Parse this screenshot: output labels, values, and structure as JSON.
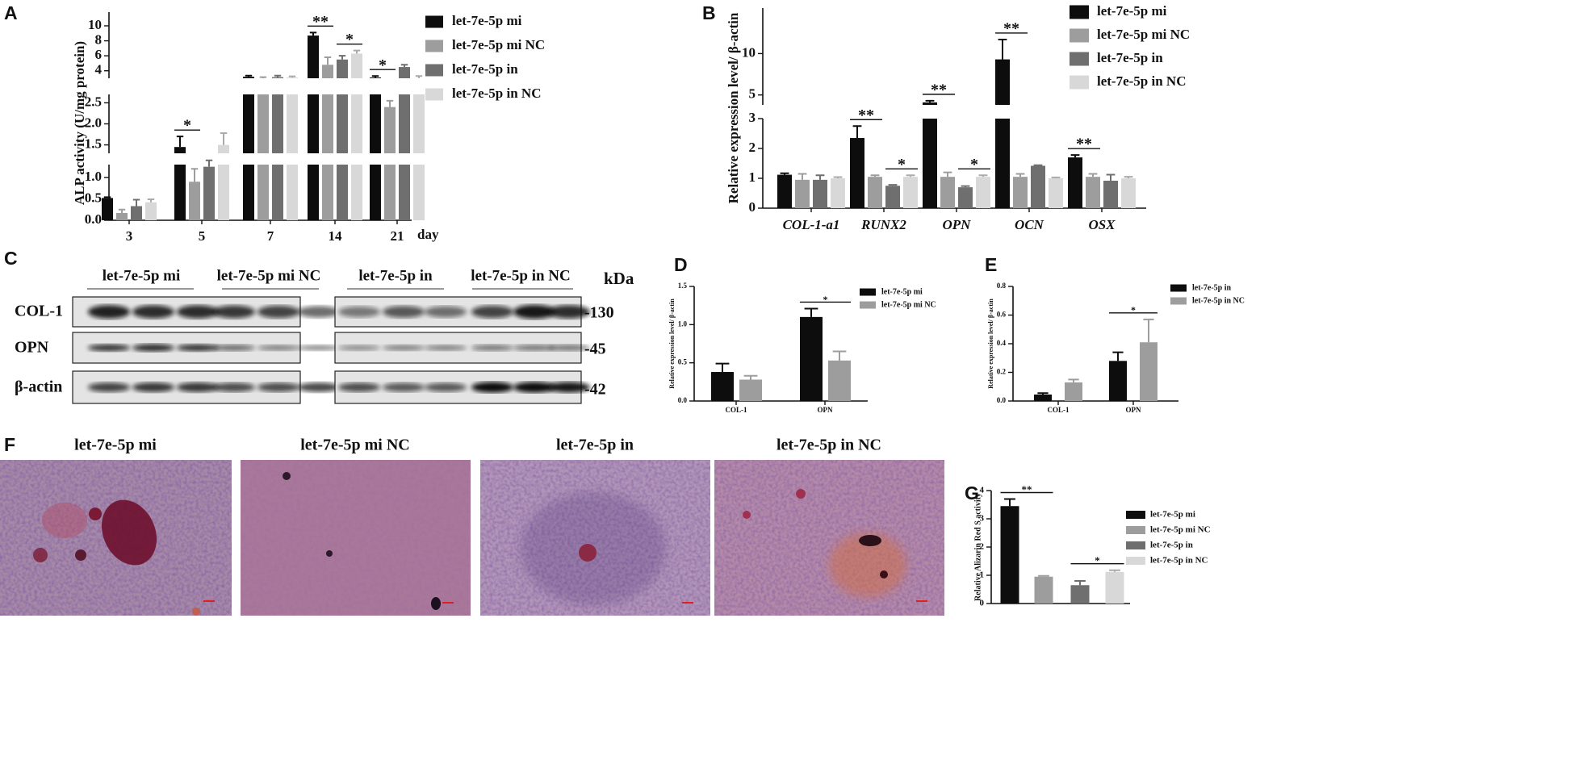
{
  "chart_data": [
    {
      "type": "bar",
      "panel": "A",
      "y_label": "ALP activity (U/mg protein)",
      "x_label": "day",
      "categories": [
        "3",
        "5",
        "7",
        "14",
        "21"
      ],
      "series": [
        {
          "name": "let-7e-5p mi",
          "color": "#0d0d0d",
          "values": [
            0.52,
            1.45,
            3.2,
            8.7,
            3.1
          ],
          "errors": [
            0.02,
            0.25,
            0.15,
            0.4,
            0.2
          ]
        },
        {
          "name": "let-7e-5p mi NC",
          "color": "#9d9d9d",
          "values": [
            0.17,
            0.9,
            3.0,
            4.8,
            2.4
          ],
          "errors": [
            0.08,
            0.3,
            0.15,
            1.0,
            0.15
          ]
        },
        {
          "name": "let-7e-5p in",
          "color": "#6f6f6f",
          "values": [
            0.33,
            1.25,
            3.15,
            5.5,
            4.5
          ],
          "errors": [
            0.15,
            0.15,
            0.2,
            0.5,
            0.3
          ]
        },
        {
          "name": "let-7e-5p in NC",
          "color": "#d8d8d8",
          "values": [
            0.42,
            1.5,
            3.1,
            6.3,
            3.0
          ],
          "errors": [
            0.07,
            0.28,
            0.15,
            0.4,
            0.3
          ]
        }
      ],
      "y_segments": [
        {
          "ylim": [
            0,
            1.3
          ],
          "yticks": [
            {
              "value": 0,
              "label": "0.0"
            },
            {
              "value": 0.5,
              "label": "0.5"
            },
            {
              "value": 1,
              "label": "1.0"
            }
          ]
        },
        {
          "ylim": [
            1.3,
            2.7
          ],
          "yticks": [
            1.5,
            {
              "value": 2,
              "label": "2.0"
            },
            2.5
          ]
        },
        {
          "ylim": [
            3,
            10
          ],
          "yticks": [
            4,
            6,
            8,
            10
          ]
        }
      ],
      "annotations": [
        {
          "label": "*",
          "category": "5",
          "between": [
            "let-7e-5p mi",
            "let-7e-5p mi NC"
          ]
        },
        {
          "label": "**",
          "category": "14",
          "between": [
            "let-7e-5p mi",
            "let-7e-5p mi NC"
          ]
        },
        {
          "label": "*",
          "category": "14",
          "between": [
            "let-7e-5p in",
            "let-7e-5p in NC"
          ]
        },
        {
          "label": "*",
          "category": "21",
          "between": [
            "let-7e-5p mi",
            "let-7e-5p mi NC"
          ]
        }
      ]
    },
    {
      "type": "bar",
      "panel": "B",
      "y_label": "Relative expression level/ β-actin",
      "categories": [
        "COL-1-a1",
        "RUNX2",
        "OPN",
        "OCN",
        "OSX"
      ],
      "series": [
        {
          "name": "let-7e-5p mi",
          "color": "#0d0d0d",
          "values": [
            1.12,
            2.35,
            4.1,
            9.3,
            1.7
          ],
          "errors": [
            0.05,
            0.4,
            0.2,
            2.4,
            0.08
          ]
        },
        {
          "name": "let-7e-5p mi NC",
          "color": "#9d9d9d",
          "values": [
            0.95,
            1.05,
            1.05,
            1.05,
            1.05
          ],
          "errors": [
            0.2,
            0.05,
            0.15,
            0.1,
            0.1
          ]
        },
        {
          "name": "let-7e-5p in",
          "color": "#6f6f6f",
          "values": [
            0.95,
            0.75,
            0.7,
            1.42,
            0.92
          ],
          "errors": [
            0.15,
            0.03,
            0.04,
            0.02,
            0.2
          ]
        },
        {
          "name": "let-7e-5p in NC",
          "color": "#d8d8d8",
          "values": [
            1.0,
            1.05,
            1.05,
            1.0,
            1.0
          ],
          "errors": [
            0.04,
            0.05,
            0.05,
            0.03,
            0.05
          ]
        }
      ],
      "y_segments": [
        {
          "ylim": [
            0,
            3
          ],
          "yticks": [
            0,
            1,
            2,
            3
          ]
        },
        {
          "ylim": [
            3.8,
            15.5
          ],
          "yticks": [
            5,
            10
          ]
        }
      ],
      "annotations": [
        {
          "label": "**",
          "category": "RUNX2",
          "between": [
            "let-7e-5p mi",
            "let-7e-5p mi NC"
          ]
        },
        {
          "label": "*",
          "category": "RUNX2",
          "between": [
            "let-7e-5p in",
            "let-7e-5p in NC"
          ]
        },
        {
          "label": "**",
          "category": "OPN",
          "between": [
            "let-7e-5p mi",
            "let-7e-5p mi NC"
          ]
        },
        {
          "label": "*",
          "category": "OPN",
          "between": [
            "let-7e-5p in",
            "let-7e-5p in NC"
          ]
        },
        {
          "label": "**",
          "category": "OCN",
          "between": [
            "let-7e-5p mi",
            "let-7e-5p mi NC"
          ]
        },
        {
          "label": "**",
          "category": "OSX",
          "between": [
            "let-7e-5p mi",
            "let-7e-5p mi NC"
          ]
        }
      ]
    },
    {
      "type": "bar",
      "panel": "D",
      "y_label": "Relative expression level/ β-actin",
      "categories": [
        "COL-1",
        "OPN"
      ],
      "series": [
        {
          "name": "let-7e-5p mi",
          "color": "#0d0d0d",
          "values": [
            0.38,
            1.1
          ],
          "errors": [
            0.11,
            0.11
          ]
        },
        {
          "name": "let-7e-5p mi NC",
          "color": "#9d9d9d",
          "values": [
            0.28,
            0.53
          ],
          "errors": [
            0.05,
            0.12
          ]
        }
      ],
      "ylim": [
        0,
        1.5
      ],
      "yticks": [
        {
          "value": 0,
          "label": "0.0"
        },
        {
          "value": 0.5,
          "label": "0.5"
        },
        {
          "value": 1,
          "label": "1.0"
        },
        {
          "value": 1.5,
          "label": "1.5"
        }
      ],
      "annotations": [
        {
          "label": "*",
          "category": "OPN",
          "between": [
            "let-7e-5p mi",
            "let-7e-5p mi NC"
          ]
        }
      ]
    },
    {
      "type": "bar",
      "panel": "E",
      "y_label": "Relative expression level/ β-actin",
      "categories": [
        "COL-1",
        "OPN"
      ],
      "series": [
        {
          "name": "let-7e-5p in",
          "color": "#0d0d0d",
          "values": [
            0.045,
            0.28
          ],
          "errors": [
            0.01,
            0.06
          ]
        },
        {
          "name": "let-7e-5p in NC",
          "color": "#9d9d9d",
          "values": [
            0.13,
            0.41
          ],
          "errors": [
            0.02,
            0.16
          ]
        }
      ],
      "ylim": [
        0,
        0.8
      ],
      "yticks": [
        {
          "value": 0,
          "label": "0.0"
        },
        0.2,
        0.4,
        0.6,
        0.8
      ],
      "annotations": [
        {
          "label": "*",
          "category": "OPN",
          "between": [
            "let-7e-5p in",
            "let-7e-5p in NC"
          ]
        }
      ]
    },
    {
      "type": "bar",
      "panel": "G",
      "y_label": "Relative Alizarin Red S activity",
      "categories": [
        null
      ],
      "series": [
        {
          "name": "let-7e-5p mi",
          "color": "#0d0d0d",
          "values": [
            3.45
          ],
          "errors": [
            0.25
          ]
        },
        {
          "name": "let-7e-5p mi NC",
          "color": "#9d9d9d",
          "values": [
            0.95
          ],
          "errors": [
            0.03
          ]
        },
        {
          "name": "let-7e-5p in",
          "color": "#6f6f6f",
          "values": [
            0.65
          ],
          "errors": [
            0.15
          ]
        },
        {
          "name": "let-7e-5p in NC",
          "color": "#d8d8d8",
          "values": [
            1.12
          ],
          "errors": [
            0.06
          ]
        }
      ],
      "ylim": [
        0,
        4
      ],
      "yticks": [
        0,
        1,
        2,
        3,
        4
      ],
      "annotations": [
        {
          "label": "**",
          "category": null,
          "between": [
            "let-7e-5p mi",
            "let-7e-5p mi NC"
          ]
        },
        {
          "label": "*",
          "category": null,
          "between": [
            "let-7e-5p in",
            "let-7e-5p in NC"
          ]
        }
      ]
    }
  ],
  "blot": {
    "panel": "C",
    "groups": [
      "let-7e-5p mi",
      "let-7e-5p mi NC",
      "let-7e-5p in",
      "let-7e-5p in NC"
    ],
    "unit": "kDa",
    "rows": [
      "COL-1",
      "OPN",
      "β-actin"
    ],
    "sizes": [
      "-130",
      "-45",
      "-42"
    ]
  },
  "micrographs": {
    "panel": "F",
    "titles": [
      "let-7e-5p mi",
      "let-7e-5p mi NC",
      "let-7e-5p in",
      "let-7e-5p in NC"
    ]
  }
}
